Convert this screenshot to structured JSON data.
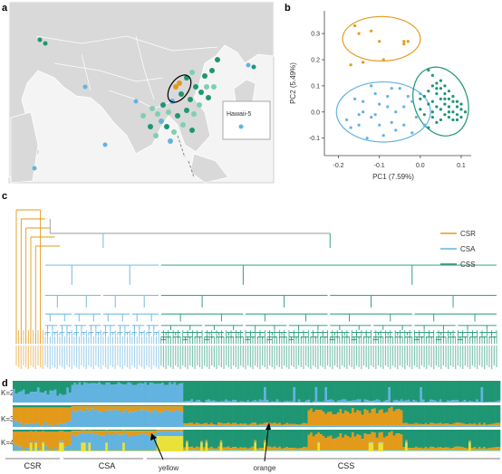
{
  "panels": {
    "a": "a",
    "b": "b",
    "c": "c",
    "d": "d"
  },
  "map": {
    "inset_label": "Hawaii-5"
  },
  "colors": {
    "CSR": "#e39a1a",
    "CSA": "#63b3e0",
    "CSS": "#1e9673",
    "yellow": "#e8e23a",
    "map_land": "#d8d8d8",
    "map_sea": "#ffffff"
  },
  "chart_data": {
    "type": "scatter",
    "xlabel": "PC1 (7.59%)",
    "ylabel": "PC2 (5.49%)",
    "xlim": [
      -0.23,
      0.12
    ],
    "ylim": [
      -0.16,
      0.38
    ],
    "x_ticks": [
      "-0.2",
      "-0.1",
      "0.0",
      "0.1"
    ],
    "y_ticks": [
      "-0.1",
      "0.0",
      "0.1",
      "0.2",
      "0.3"
    ],
    "series": [
      {
        "name": "CSR",
        "color": "#e39a1a",
        "points": [
          [
            -0.16,
            0.33
          ],
          [
            -0.15,
            0.3
          ],
          [
            -0.12,
            0.31
          ],
          [
            -0.04,
            0.27
          ],
          [
            -0.04,
            0.26
          ],
          [
            -0.03,
            0.27
          ],
          [
            -0.09,
            0.2
          ],
          [
            -0.17,
            0.18
          ],
          [
            -0.14,
            0.19
          ],
          [
            -0.1,
            0.27
          ]
        ]
      },
      {
        "name": "CSA",
        "color": "#63b3e0",
        "points": [
          [
            -0.18,
            -0.03
          ],
          [
            -0.15,
            -0.05
          ],
          [
            -0.14,
            0.0
          ],
          [
            -0.12,
            -0.02
          ],
          [
            -0.16,
            0.05
          ],
          [
            -0.1,
            0.03
          ],
          [
            -0.08,
            0.06
          ],
          [
            -0.06,
            0.0
          ],
          [
            -0.04,
            -0.05
          ],
          [
            -0.02,
            0.04
          ],
          [
            -0.01,
            -0.02
          ],
          [
            0.0,
            0.07
          ],
          [
            -0.09,
            -0.09
          ],
          [
            -0.13,
            -0.1
          ],
          [
            -0.05,
            0.09
          ],
          [
            -0.07,
            -0.04
          ],
          [
            -0.11,
            0.07
          ],
          [
            -0.02,
            -0.08
          ],
          [
            -0.17,
            -0.06
          ],
          [
            -0.03,
            0.06
          ],
          [
            -0.14,
            0.04
          ],
          [
            -0.06,
            -0.07
          ],
          [
            -0.1,
            -0.05
          ],
          [
            -0.08,
            0.02
          ],
          [
            0.01,
            -0.05
          ],
          [
            -0.12,
            0.1
          ],
          [
            -0.04,
            0.02
          ],
          [
            -0.15,
            -0.01
          ],
          [
            -0.07,
            0.09
          ],
          [
            -0.11,
            -0.01
          ]
        ]
      },
      {
        "name": "CSS",
        "color": "#1e9673",
        "points": [
          [
            0.02,
            0.16
          ],
          [
            0.03,
            0.14
          ],
          [
            0.04,
            0.11
          ],
          [
            0.05,
            0.09
          ],
          [
            0.06,
            0.07
          ],
          [
            0.07,
            0.05
          ],
          [
            0.08,
            0.04
          ],
          [
            0.09,
            0.02
          ],
          [
            0.1,
            0.01
          ],
          [
            0.05,
            0.05
          ],
          [
            0.06,
            0.03
          ],
          [
            0.07,
            0.02
          ],
          [
            0.08,
            0.0
          ],
          [
            0.09,
            -0.01
          ],
          [
            0.1,
            -0.02
          ],
          [
            0.04,
            0.07
          ],
          [
            0.03,
            0.1
          ],
          [
            0.02,
            0.08
          ],
          [
            0.03,
            0.04
          ],
          [
            0.04,
            0.02
          ],
          [
            0.05,
            0.01
          ],
          [
            0.06,
            -0.01
          ],
          [
            0.07,
            -0.02
          ],
          [
            0.08,
            -0.03
          ],
          [
            0.09,
            -0.03
          ],
          [
            0.06,
            0.1
          ],
          [
            0.05,
            0.12
          ],
          [
            0.02,
            0.03
          ],
          [
            0.0,
            0.01
          ],
          [
            0.01,
            0.06
          ],
          [
            0.03,
            -0.02
          ],
          [
            0.04,
            -0.04
          ],
          [
            0.02,
            -0.06
          ],
          [
            0.07,
            0.08
          ],
          [
            0.08,
            0.06
          ],
          [
            0.09,
            0.04
          ],
          [
            0.1,
            0.03
          ],
          [
            0.11,
            0.0
          ],
          [
            0.06,
            0.05
          ],
          [
            0.05,
            -0.03
          ],
          [
            0.03,
            0.0
          ],
          [
            0.01,
            -0.01
          ],
          [
            0.07,
            0.0
          ],
          [
            0.04,
            0.09
          ],
          [
            0.0,
            0.05
          ]
        ]
      }
    ],
    "ellipses": [
      {
        "group": "CSR",
        "cx": -0.095,
        "cy": 0.28,
        "rx": 0.095,
        "ry": 0.085
      },
      {
        "group": "CSA",
        "cx": -0.09,
        "cy": 0.0,
        "rx": 0.115,
        "ry": 0.115
      },
      {
        "group": "CSS",
        "cx": 0.05,
        "cy": 0.04,
        "rx": 0.065,
        "ry": 0.135
      }
    ]
  },
  "legend": [
    {
      "label": "CSR",
      "color": "#e39a1a"
    },
    {
      "label": "CSA",
      "color": "#63b3e0"
    },
    {
      "label": "CSS",
      "color": "#1e9673"
    }
  ],
  "structure": {
    "rows": [
      "K=2",
      "K=3",
      "K=4"
    ],
    "group_labels": [
      "CSR",
      "CSA",
      "CSS"
    ],
    "annotations": [
      "yellow",
      "orange"
    ]
  }
}
